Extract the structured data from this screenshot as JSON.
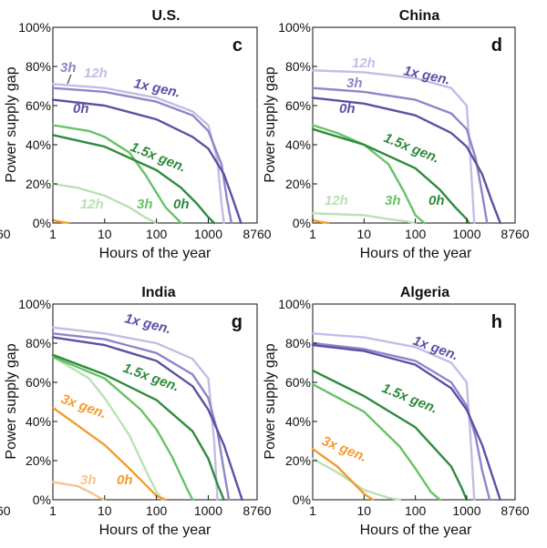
{
  "chart_data": [
    {
      "type": "line",
      "panel": "c",
      "title": "U.S.",
      "xlabel": "Hours of the year",
      "ylabel": "Power supply gap",
      "x_scale": "log",
      "xlim": [
        1,
        8760
      ],
      "ylim": [
        0,
        100
      ],
      "x_ticks": [
        "1",
        "10",
        "100",
        "1000",
        "8760"
      ],
      "y_ticks": [
        "0%",
        "20%",
        "40%",
        "60%",
        "80%",
        "100%"
      ],
      "series": [
        {
          "color": "#c3bde6",
          "x": [
            1,
            10,
            100,
            500,
            1000,
            1500,
            1800,
            2000
          ],
          "y": [
            71,
            69,
            64,
            57,
            50,
            32,
            10,
            0
          ]
        },
        {
          "color": "#9085c9",
          "x": [
            1,
            10,
            100,
            500,
            1000,
            1800,
            2300,
            2800
          ],
          "y": [
            69,
            67,
            62,
            55,
            47,
            30,
            12,
            0
          ]
        },
        {
          "color": "#5f4fa3",
          "x": [
            1,
            10,
            100,
            500,
            1000,
            2000,
            3000,
            4300
          ],
          "y": [
            63,
            60,
            53,
            44,
            38,
            25,
            12,
            0
          ]
        },
        {
          "color": "#b9e2b3",
          "x": [
            1,
            3,
            10,
            30,
            60,
            100
          ],
          "y": [
            20,
            18,
            14,
            8,
            3,
            0
          ]
        },
        {
          "color": "#68c266",
          "x": [
            1,
            5,
            10,
            30,
            60,
            150,
            300
          ],
          "y": [
            50,
            47,
            44,
            36,
            25,
            8,
            0
          ]
        },
        {
          "color": "#2e8b3d",
          "x": [
            1,
            10,
            100,
            300,
            600,
            1000,
            1300
          ],
          "y": [
            45,
            39,
            27,
            18,
            10,
            3,
            0
          ]
        },
        {
          "color": "#f39c2c",
          "x": [
            1,
            1.4,
            2
          ],
          "y": [
            1.5,
            0.6,
            0
          ]
        }
      ],
      "annotations": [
        {
          "text": "3h",
          "color": "#9085c9"
        },
        {
          "text": "12h",
          "color": "#c3bde6"
        },
        {
          "text": "1x gen.",
          "color": "#5f4fa3"
        },
        {
          "text": "0h",
          "color": "#5f4fa3"
        },
        {
          "text": "1.5x gen.",
          "color": "#2e8b3d"
        },
        {
          "text": "12h",
          "color": "#b9e2b3"
        },
        {
          "text": "3h",
          "color": "#68c266"
        },
        {
          "text": "0h",
          "color": "#2e8b3d"
        }
      ]
    },
    {
      "type": "line",
      "panel": "d",
      "title": "China",
      "xlabel": "Hours of the year",
      "ylabel": "Power supply gap",
      "x_scale": "log",
      "xlim": [
        1,
        8760
      ],
      "ylim": [
        0,
        100
      ],
      "x_ticks": [
        "1",
        "10",
        "100",
        "1000",
        "8760"
      ],
      "y_ticks": [
        "0%",
        "20%",
        "40%",
        "60%",
        "80%",
        "100%"
      ],
      "series": [
        {
          "color": "#c3bde6",
          "x": [
            1,
            10,
            100,
            500,
            1000,
            1200,
            1400
          ],
          "y": [
            78,
            77,
            74,
            69,
            60,
            30,
            0
          ]
        },
        {
          "color": "#9085c9",
          "x": [
            1,
            10,
            100,
            500,
            1000,
            1500,
            2000,
            2500
          ],
          "y": [
            69,
            67,
            63,
            56,
            48,
            33,
            15,
            0
          ]
        },
        {
          "color": "#5f4fa3",
          "x": [
            1,
            10,
            100,
            500,
            1000,
            2000,
            3000,
            4500
          ],
          "y": [
            64,
            61,
            55,
            46,
            39,
            25,
            12,
            0
          ]
        },
        {
          "color": "#b9e2b3",
          "x": [
            1,
            10,
            30,
            60,
            100
          ],
          "y": [
            5,
            4,
            2,
            1,
            0
          ]
        },
        {
          "color": "#68c266",
          "x": [
            1,
            3,
            10,
            30,
            60,
            100,
            150
          ],
          "y": [
            50,
            46,
            40,
            30,
            16,
            4,
            0
          ]
        },
        {
          "color": "#2e8b3d",
          "x": [
            1,
            10,
            100,
            300,
            600,
            1000,
            1100
          ],
          "y": [
            48,
            40,
            28,
            17,
            8,
            2,
            0
          ]
        },
        {
          "color": "#f39c2c",
          "x": [
            1,
            1.4,
            2
          ],
          "y": [
            1.5,
            0.6,
            0
          ]
        }
      ],
      "annotations": [
        {
          "text": "12h",
          "color": "#c3bde6"
        },
        {
          "text": "1x gen.",
          "color": "#5f4fa3"
        },
        {
          "text": "3h",
          "color": "#9085c9"
        },
        {
          "text": "0h",
          "color": "#5f4fa3"
        },
        {
          "text": "1.5x gen.",
          "color": "#2e8b3d"
        },
        {
          "text": "12h",
          "color": "#b9e2b3"
        },
        {
          "text": "3h",
          "color": "#68c266"
        },
        {
          "text": "0h",
          "color": "#2e8b3d"
        }
      ]
    },
    {
      "type": "line",
      "panel": "g",
      "title": "India",
      "xlabel": "Hours of the year",
      "ylabel": "Power supply gap",
      "x_scale": "log",
      "xlim": [
        1,
        8760
      ],
      "ylim": [
        0,
        100
      ],
      "x_ticks": [
        "1",
        "10",
        "100",
        "1000",
        "8760"
      ],
      "y_ticks": [
        "0%",
        "20%",
        "40%",
        "60%",
        "80%",
        "100%"
      ],
      "series": [
        {
          "color": "#c3bde6",
          "x": [
            1,
            10,
            100,
            500,
            1000,
            1300,
            1500
          ],
          "y": [
            88,
            85,
            80,
            72,
            62,
            30,
            0
          ]
        },
        {
          "color": "#9085c9",
          "x": [
            1,
            10,
            100,
            500,
            1000,
            1500,
            2000,
            2500
          ],
          "y": [
            85,
            82,
            75,
            64,
            52,
            35,
            15,
            0
          ]
        },
        {
          "color": "#5f4fa3",
          "x": [
            1,
            10,
            100,
            500,
            1000,
            2000,
            3000,
            4500
          ],
          "y": [
            83,
            79,
            71,
            58,
            46,
            28,
            14,
            0
          ]
        },
        {
          "color": "#b9e2b3",
          "x": [
            1,
            5,
            10,
            30,
            60,
            100,
            130
          ],
          "y": [
            73,
            62,
            52,
            33,
            16,
            4,
            0
          ]
        },
        {
          "color": "#68c266",
          "x": [
            1,
            10,
            50,
            100,
            200,
            400,
            500
          ],
          "y": [
            73,
            62,
            46,
            36,
            22,
            5,
            0
          ]
        },
        {
          "color": "#2e8b3d",
          "x": [
            1,
            10,
            100,
            500,
            1000,
            1500,
            2000
          ],
          "y": [
            74,
            64,
            51,
            35,
            21,
            8,
            0
          ]
        },
        {
          "color": "#f7c48c",
          "x": [
            1,
            3,
            6,
            8,
            10
          ],
          "y": [
            9,
            7,
            3,
            1,
            0
          ]
        },
        {
          "color": "#f39c2c",
          "x": [
            1,
            3,
            10,
            30,
            60,
            100,
            150
          ],
          "y": [
            47,
            38,
            28,
            16,
            8,
            2,
            0
          ]
        }
      ],
      "annotations": [
        {
          "text": "1x gen.",
          "color": "#5f4fa3"
        },
        {
          "text": "1.5x gen.",
          "color": "#2e8b3d"
        },
        {
          "text": "3x gen.",
          "color": "#f39c2c"
        },
        {
          "text": "3h",
          "color": "#f7c48c"
        },
        {
          "text": "0h",
          "color": "#f39c2c"
        }
      ]
    },
    {
      "type": "line",
      "panel": "h",
      "title": "Algeria",
      "xlabel": "Hours of the year",
      "ylabel": "Power supply gap",
      "x_scale": "log",
      "xlim": [
        1,
        8760
      ],
      "ylim": [
        0,
        100
      ],
      "x_ticks": [
        "1",
        "10",
        "100",
        "1000",
        "8760"
      ],
      "y_ticks": [
        "0%",
        "20%",
        "40%",
        "60%",
        "80%",
        "100%"
      ],
      "series": [
        {
          "color": "#c3bde6",
          "x": [
            1,
            10,
            100,
            500,
            1000,
            1200,
            1400
          ],
          "y": [
            85,
            83,
            78,
            70,
            60,
            30,
            0
          ]
        },
        {
          "color": "#9085c9",
          "x": [
            1,
            10,
            100,
            500,
            1000,
            1500,
            2000,
            2800
          ],
          "y": [
            80,
            77,
            71,
            60,
            48,
            32,
            15,
            0
          ]
        },
        {
          "color": "#5f4fa3",
          "x": [
            1,
            10,
            100,
            500,
            1000,
            2000,
            3000,
            4500
          ],
          "y": [
            79,
            76,
            69,
            57,
            46,
            28,
            14,
            0
          ]
        },
        {
          "color": "#b9e2b3",
          "x": [
            1,
            3,
            10,
            30,
            50
          ],
          "y": [
            21,
            14,
            5,
            1,
            0
          ]
        },
        {
          "color": "#68c266",
          "x": [
            1,
            10,
            50,
            100,
            200,
            300
          ],
          "y": [
            59,
            45,
            27,
            16,
            4,
            0
          ]
        },
        {
          "color": "#2e8b3d",
          "x": [
            1,
            10,
            100,
            500,
            800,
            1000
          ],
          "y": [
            66,
            53,
            37,
            17,
            6,
            0
          ]
        },
        {
          "color": "#f39c2c",
          "x": [
            1,
            3,
            6,
            10,
            15
          ],
          "y": [
            26,
            17,
            9,
            3,
            0
          ]
        }
      ],
      "annotations": [
        {
          "text": "1x gen.",
          "color": "#5f4fa3"
        },
        {
          "text": "1.5x gen.",
          "color": "#2e8b3d"
        },
        {
          "text": "3x gen.",
          "color": "#f39c2c"
        }
      ]
    }
  ],
  "left_clipped_tick": "60"
}
